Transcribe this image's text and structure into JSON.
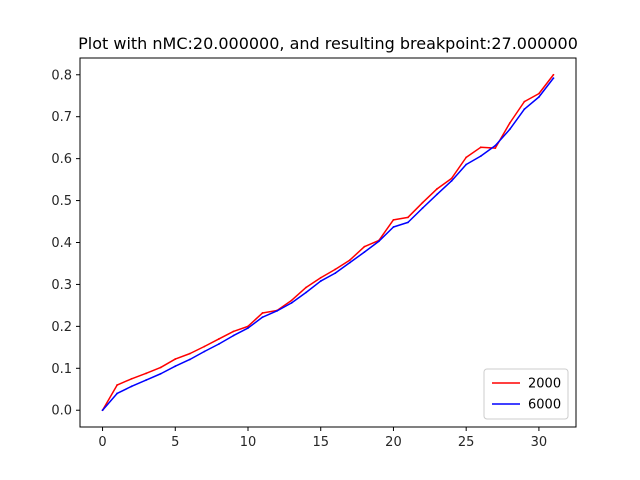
{
  "chart_data": {
    "type": "line",
    "title": "Plot with nMC:20.000000, and resulting breakpoint:27.000000",
    "xlabel": "",
    "ylabel": "",
    "xlim": [
      -1.55,
      32.55
    ],
    "ylim": [
      -0.04,
      0.84
    ],
    "x_ticks": [
      0,
      5,
      10,
      15,
      20,
      25,
      30
    ],
    "x_tick_labels": [
      "0",
      "5",
      "10",
      "15",
      "20",
      "25",
      "30"
    ],
    "y_ticks": [
      0.0,
      0.1,
      0.2,
      0.3,
      0.4,
      0.5,
      0.6,
      0.7,
      0.8
    ],
    "y_tick_labels": [
      "0.0",
      "0.1",
      "0.2",
      "0.3",
      "0.4",
      "0.5",
      "0.6",
      "0.7",
      "0.8"
    ],
    "grid": false,
    "legend_position": "lower-right",
    "x": [
      0,
      1,
      2,
      3,
      4,
      5,
      6,
      7,
      8,
      9,
      10,
      11,
      12,
      13,
      14,
      15,
      16,
      17,
      18,
      19,
      20,
      21,
      22,
      23,
      24,
      25,
      26,
      27,
      28,
      29,
      30,
      31
    ],
    "series": [
      {
        "name": "2000",
        "color": "#ff0000",
        "values": [
          0.0,
          0.06,
          0.075,
          0.088,
          0.102,
          0.122,
          0.135,
          0.152,
          0.17,
          0.188,
          0.2,
          0.232,
          0.238,
          0.262,
          0.293,
          0.316,
          0.336,
          0.358,
          0.39,
          0.405,
          0.454,
          0.46,
          0.495,
          0.528,
          0.553,
          0.603,
          0.627,
          0.625,
          0.685,
          0.736,
          0.755,
          0.8
        ]
      },
      {
        "name": "6000",
        "color": "#0000ff",
        "values": [
          0.0,
          0.04,
          0.057,
          0.072,
          0.087,
          0.105,
          0.121,
          0.14,
          0.158,
          0.178,
          0.196,
          0.222,
          0.237,
          0.256,
          0.281,
          0.308,
          0.327,
          0.352,
          0.377,
          0.403,
          0.437,
          0.448,
          0.482,
          0.515,
          0.547,
          0.586,
          0.606,
          0.631,
          0.67,
          0.718,
          0.747,
          0.792
        ]
      }
    ]
  }
}
